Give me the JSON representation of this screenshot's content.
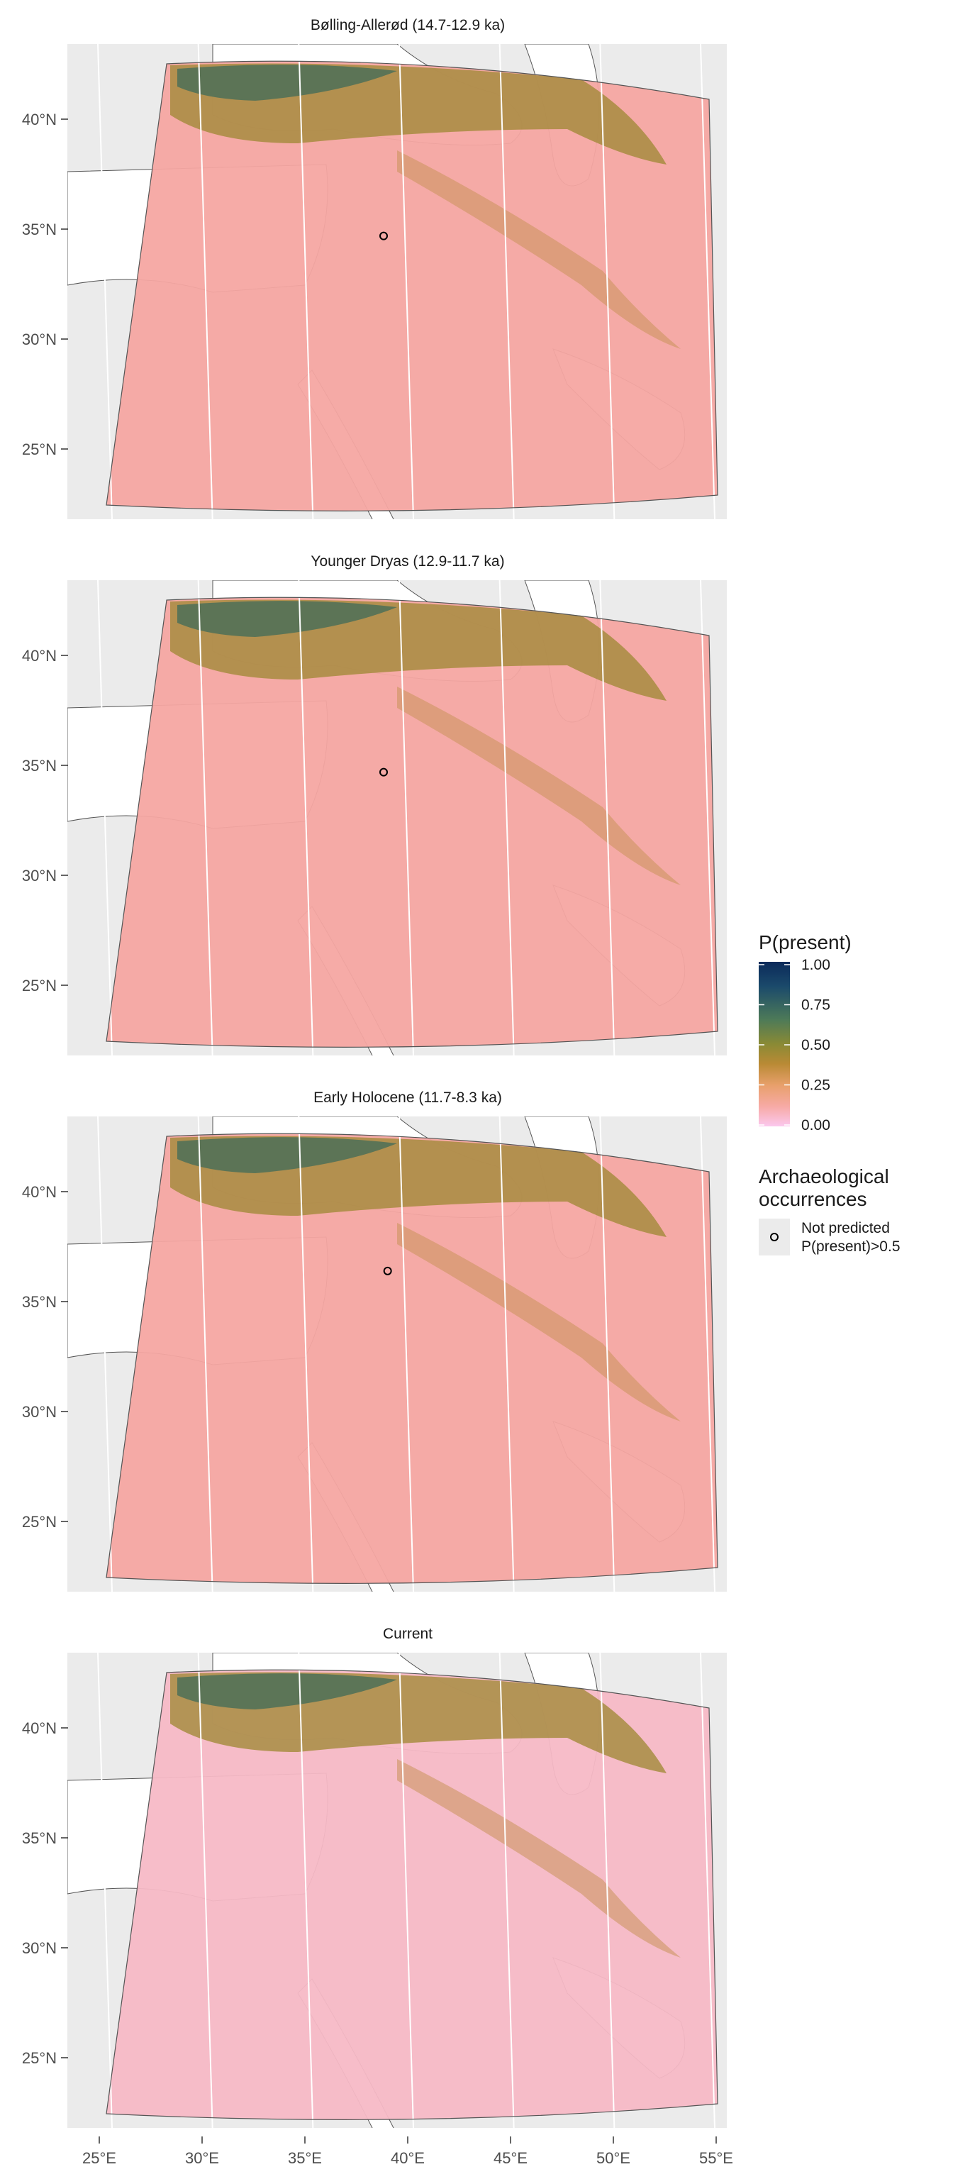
{
  "chart_data": {
    "type": "heatmap",
    "panels": [
      {
        "title": "Bølling-Allerød (14.7-12.9 ka)",
        "occurrences": [
          {
            "lon": 38.8,
            "lat": 34.7
          }
        ]
      },
      {
        "title": "Younger Dryas (12.9-11.7 ka)",
        "occurrences": [
          {
            "lon": 38.8,
            "lat": 34.7
          }
        ]
      },
      {
        "title": "Early Holocene (11.7-8.3 ka)",
        "occurrences": [
          {
            "lon": 39.0,
            "lat": 36.4
          }
        ]
      },
      {
        "title": "Current",
        "occurrences": []
      }
    ],
    "x_ticks": [
      "25°E",
      "30°E",
      "35°E",
      "40°E",
      "45°E",
      "50°E",
      "55°E"
    ],
    "y_ticks": [
      "40°N",
      "35°N",
      "30°N",
      "25°N"
    ],
    "xlim": [
      25,
      55
    ],
    "ylim": [
      22,
      42
    ],
    "legend": {
      "title": "P(present)",
      "scale_ticks": [
        "1.00",
        "0.75",
        "0.50",
        "0.25",
        "0.00"
      ],
      "range": [
        0,
        1
      ],
      "colors": [
        "#fbc8ee",
        "#f7aaa6",
        "#e8a06b",
        "#b98a35",
        "#8a8a35",
        "#4d7a58",
        "#1b4a6b",
        "#0b2a5a"
      ],
      "occurrence_title_line1": "Archaeological",
      "occurrence_title_line2": "occurrences",
      "occurrence_label_line1": "Not predicted",
      "occurrence_label_line2": "P(present)>0.5"
    }
  }
}
